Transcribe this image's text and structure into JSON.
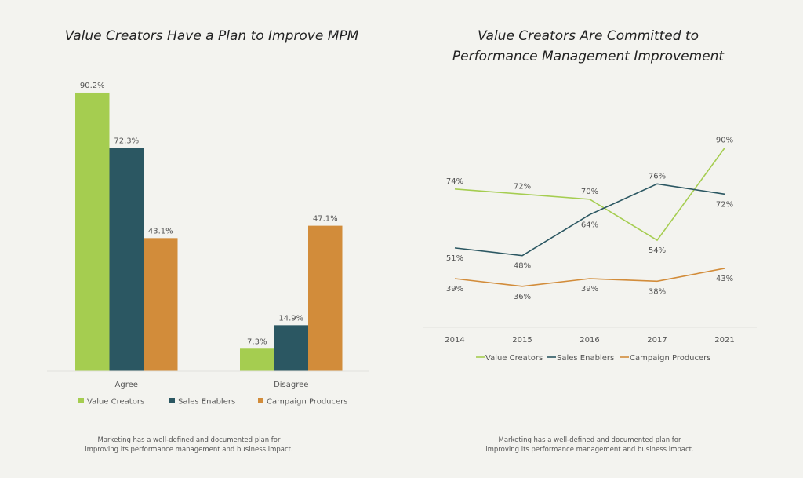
{
  "colors": {
    "value_creators": "#a5cd50",
    "sales_enablers": "#2b5762",
    "campaign_producers": "#d28c3a",
    "background": "#f3f3ef"
  },
  "chart_data": [
    {
      "type": "bar",
      "title": "Value Creators Have a Plan to Improve MPM",
      "categories": [
        "Agree",
        "Disagree"
      ],
      "series": [
        {
          "name": "Value Creators",
          "values": [
            90.2,
            7.3
          ],
          "labels": [
            "90.2%",
            "7.3%"
          ]
        },
        {
          "name": "Sales Enablers",
          "values": [
            72.3,
            14.9
          ],
          "labels": [
            "72.3%",
            "14.9%"
          ]
        },
        {
          "name": "Campaign Producers",
          "values": [
            43.1,
            47.1
          ],
          "labels": [
            "43.1%",
            "47.1%"
          ]
        }
      ],
      "ylim": [
        0,
        100
      ],
      "legend": "bottom",
      "caption": [
        "Marketing has a well-defined and documented plan for",
        "improving its performance management and business impact."
      ]
    },
    {
      "type": "line",
      "title": [
        "Value Creators Are Committed to",
        "Performance Management Improvement"
      ],
      "x": [
        "2014",
        "2015",
        "2016",
        "2017",
        "2021"
      ],
      "series": [
        {
          "name": "Value Creators",
          "values": [
            74,
            72,
            70,
            54,
            90
          ],
          "labels": [
            "74%",
            "72%",
            "70%",
            "54%",
            "90%"
          ],
          "label_pos": [
            "above",
            "above",
            "above",
            "below",
            "above"
          ]
        },
        {
          "name": "Sales Enablers",
          "values": [
            51,
            48,
            64,
            76,
            72
          ],
          "labels": [
            "51%",
            "48%",
            "64%",
            "76%",
            "72%"
          ],
          "label_pos": [
            "below",
            "below",
            "below",
            "above",
            "below"
          ]
        },
        {
          "name": "Campaign Producers",
          "values": [
            39,
            36,
            39,
            38,
            43
          ],
          "labels": [
            "39%",
            "36%",
            "39%",
            "38%",
            "43%"
          ],
          "label_pos": [
            "below",
            "below",
            "below",
            "below",
            "below"
          ]
        }
      ],
      "ylim": [
        20,
        100
      ],
      "legend": "bottom",
      "caption": [
        "Marketing has a well-defined and documented plan for",
        "improving its performance management and business impact."
      ]
    }
  ]
}
